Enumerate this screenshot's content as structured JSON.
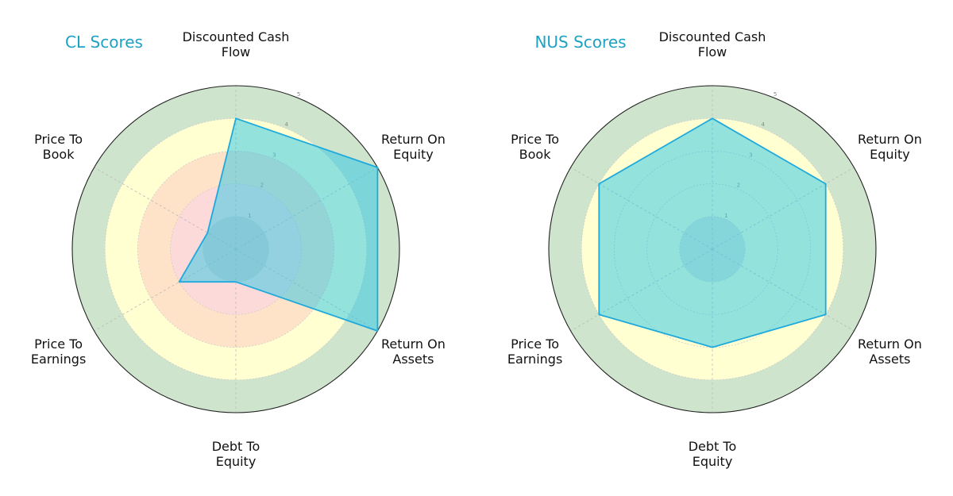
{
  "chart_data": [
    {
      "type": "radar",
      "title": "CL Scores",
      "axes": [
        [
          "Discounted Cash",
          "Flow"
        ],
        [
          "Return On",
          "Equity"
        ],
        [
          "Return On",
          "Assets"
        ],
        [
          "Debt To",
          "Equity"
        ],
        [
          "Price To",
          "Earnings"
        ],
        [
          "Price To",
          "Book"
        ]
      ],
      "rlim": [
        0,
        5
      ],
      "ring_ticks": [
        "1",
        "2",
        "3",
        "4",
        "5"
      ],
      "series": [
        {
          "values": [
            4,
            5,
            5,
            1,
            2,
            1
          ]
        }
      ]
    },
    {
      "type": "radar",
      "title": "NUS Scores",
      "axes": [
        [
          "Discounted Cash",
          "Flow"
        ],
        [
          "Return On",
          "Equity"
        ],
        [
          "Return On",
          "Assets"
        ],
        [
          "Debt To",
          "Equity"
        ],
        [
          "Price To",
          "Earnings"
        ],
        [
          "Price To",
          "Book"
        ]
      ],
      "rlim": [
        0,
        5
      ],
      "ring_ticks": [
        "1",
        "2",
        "3",
        "4",
        "5"
      ],
      "series": [
        {
          "values": [
            4,
            4,
            4,
            3,
            4,
            4
          ]
        }
      ]
    }
  ],
  "colors": {
    "title": "#1ea2c4",
    "series_fill": "#29c5e6",
    "series_stroke": "#1eaadc",
    "zone_outer": "#cfe4cd",
    "zone_mid": "#ffffd2",
    "zone_inner": "#ffe3c8",
    "zone_core": "#fddada",
    "zone_center": "#e2cdcd",
    "outline": "#222222"
  }
}
